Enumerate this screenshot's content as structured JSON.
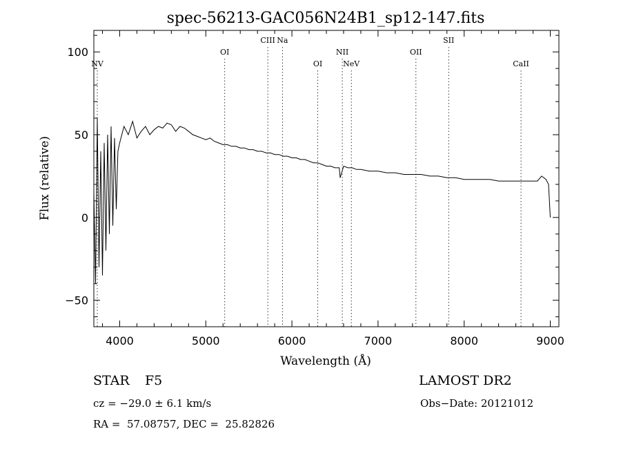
{
  "chart_data": {
    "type": "line",
    "title": "spec-56213-GAC056N24B1_sp12-147.fits",
    "xlabel": "Wavelength (Å)",
    "ylabel": "Flux (relative)",
    "xlim": [
      3700,
      9100
    ],
    "ylim": [
      -66,
      113
    ],
    "xticks": [
      4000,
      5000,
      6000,
      7000,
      8000,
      9000
    ],
    "yticks": [
      -50,
      0,
      50,
      100
    ],
    "grid": false,
    "series": [
      {
        "x": [
          3700,
          3720,
          3740,
          3760,
          3780,
          3800,
          3820,
          3840,
          3860,
          3880,
          3900,
          3920,
          3940,
          3960,
          3980,
          4000,
          4050,
          4100,
          4150,
          4200,
          4250,
          4300,
          4350,
          4400,
          4450,
          4500,
          4550,
          4600,
          4650,
          4700,
          4750,
          4800,
          4850,
          4900,
          4950,
          5000,
          5050,
          5100,
          5150,
          5200,
          5250,
          5300,
          5350,
          5400,
          5450,
          5500,
          5550,
          5600,
          5650,
          5700,
          5750,
          5800,
          5850,
          5900,
          5950,
          6000,
          6050,
          6100,
          6150,
          6200,
          6250,
          6300,
          6350,
          6400,
          6450,
          6500,
          6550,
          6560,
          6600,
          6650,
          6700,
          6750,
          6800,
          6900,
          7000,
          7100,
          7200,
          7300,
          7400,
          7500,
          7600,
          7700,
          7800,
          7900,
          8000,
          8100,
          8200,
          8300,
          8400,
          8500,
          8600,
          8700,
          8800,
          8850,
          8900,
          8950,
          8980,
          9000
        ],
        "y": [
          15,
          -40,
          60,
          -30,
          40,
          -35,
          45,
          -20,
          50,
          -10,
          55,
          -5,
          48,
          5,
          40,
          45,
          55,
          50,
          58,
          48,
          52,
          55,
          50,
          53,
          55,
          54,
          57,
          56,
          52,
          55,
          54,
          52,
          50,
          49,
          48,
          47,
          48,
          46,
          45,
          44,
          44,
          43,
          43,
          42,
          42,
          41,
          41,
          40,
          40,
          39,
          39,
          38,
          38,
          37,
          37,
          36,
          36,
          35,
          35,
          34,
          33,
          33,
          32,
          31,
          31,
          30,
          30,
          24,
          31,
          30,
          30,
          29,
          29,
          28,
          28,
          27,
          27,
          26,
          26,
          26,
          25,
          25,
          24,
          24,
          23,
          23,
          23,
          23,
          22,
          22,
          22,
          22,
          22,
          22,
          25,
          23,
          20,
          0
        ]
      }
    ],
    "lines": [
      {
        "label": "NV",
        "x": 3740,
        "row": 3
      },
      {
        "label": "OI",
        "x": 5220,
        "row": 2
      },
      {
        "label": "CIII",
        "x": 5720,
        "row": 1
      },
      {
        "label": "Na",
        "x": 5890,
        "row": 1
      },
      {
        "label": "OI",
        "x": 6300,
        "row": 3
      },
      {
        "label": "NII",
        "x": 6585,
        "row": 2
      },
      {
        "label": "NeV",
        "x": 6690,
        "row": 3
      },
      {
        "label": "OII",
        "x": 7440,
        "row": 2
      },
      {
        "label": "SII",
        "x": 7820,
        "row": 1
      },
      {
        "label": "CaII",
        "x": 8660,
        "row": 3
      }
    ]
  },
  "info": {
    "class": "STAR",
    "subclass": "F5",
    "survey": "LAMOST DR2",
    "cz": "cz = −29.0 ± 6.1 km/s",
    "obs_date": "Obs−Date: 20121012",
    "coords": "RA =  57.08757, DEC =  25.82826"
  }
}
